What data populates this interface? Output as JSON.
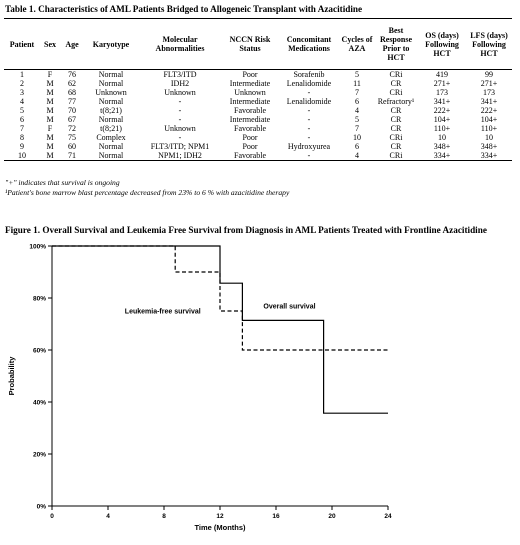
{
  "table": {
    "title": "Table 1. Characteristics of AML Patients Bridged to Allogeneic Transplant with Azacitidine",
    "headers": [
      "Patient",
      "Sex",
      "Age",
      "Karyotype",
      "Molecular Abnormalities",
      "NCCN Risk Status",
      "Concomitant Medications",
      "Cycles of AZA",
      "Best Response Prior to HCT",
      "OS (days) Following HCT",
      "LFS (days) Following HCT"
    ],
    "rows": [
      [
        "1",
        "F",
        "76",
        "Normal",
        "FLT3/ITD",
        "Poor",
        "Sorafenib",
        "5",
        "CRi",
        "419",
        "99"
      ],
      [
        "2",
        "M",
        "62",
        "Normal",
        "IDH2",
        "Intermediate",
        "Lenalidomide",
        "11",
        "CR",
        "271+",
        "271+"
      ],
      [
        "3",
        "M",
        "68",
        "Unknown",
        "Unknown",
        "Unknown",
        "-",
        "7",
        "CRi",
        "173",
        "173"
      ],
      [
        "4",
        "M",
        "77",
        "Normal",
        "-",
        "Intermediate",
        "Lenalidomide",
        "6",
        "Refractory¹",
        "341+",
        "341+"
      ],
      [
        "5",
        "M",
        "70",
        "t(8;21)",
        "-",
        "Favorable",
        "-",
        "4",
        "CR",
        "222+",
        "222+"
      ],
      [
        "6",
        "M",
        "67",
        "Normal",
        "-",
        "Intermediate",
        "-",
        "5",
        "CR",
        "104+",
        "104+"
      ],
      [
        "7",
        "F",
        "72",
        "t(8;21)",
        "Unknown",
        "Favorable",
        "-",
        "7",
        "CR",
        "110+",
        "110+"
      ],
      [
        "8",
        "M",
        "75",
        "Complex",
        "-",
        "Poor",
        "-",
        "10",
        "CRi",
        "10",
        "10"
      ],
      [
        "9",
        "M",
        "60",
        "Normal",
        "FLT3/ITD; NPM1",
        "Poor",
        "Hydroxyurea",
        "6",
        "CR",
        "348+",
        "348+"
      ],
      [
        "10",
        "M",
        "71",
        "Normal",
        "NPM1; IDH2",
        "Favorable",
        "-",
        "4",
        "CRi",
        "334+",
        "334+"
      ]
    ],
    "footnote_1": "\"+\" indicates that survival is ongoing",
    "footnote_2": "¹Patient's bone marrow blast percentage decreased from 23% to 6 % with azacitidine therapy"
  },
  "figure": {
    "title": "Figure 1. Overall Survival and Leukemia Free Survival from Diagnosis in AML Patients Treated with Frontline Azacitidine"
  },
  "chart_data": {
    "type": "line",
    "xlabel": "Time  (Months)",
    "ylabel": "Probability",
    "xlim": [
      0,
      24
    ],
    "ylim": [
      0,
      1
    ],
    "x_ticks": [
      0,
      4,
      8,
      12,
      16,
      20,
      24
    ],
    "y_ticks": [
      0,
      0.2,
      0.4,
      0.6,
      0.8,
      1.0
    ],
    "y_tick_labels": [
      "0%",
      "20%",
      "40%",
      "60%",
      "80%",
      "100%"
    ],
    "grid": false,
    "series": [
      {
        "name": "Overall survival",
        "style": "solid",
        "color": "#000000",
        "steps": [
          [
            0,
            1.0
          ],
          [
            12.0,
            0.857
          ],
          [
            13.6,
            0.714
          ],
          [
            19.4,
            0.357
          ],
          [
            24,
            0.357
          ]
        ]
      },
      {
        "name": "Leukemia-free survival",
        "style": "dashed",
        "color": "#000000",
        "steps": [
          [
            0,
            1.0
          ],
          [
            8.8,
            0.9
          ],
          [
            12.0,
            0.75
          ],
          [
            13.6,
            0.6
          ],
          [
            24,
            0.6
          ]
        ]
      }
    ],
    "annotations": [
      {
        "text": "Leukemia-free survival",
        "series": "Leukemia-free survival"
      },
      {
        "text": "Overall survival",
        "series": "Overall survival"
      }
    ]
  }
}
